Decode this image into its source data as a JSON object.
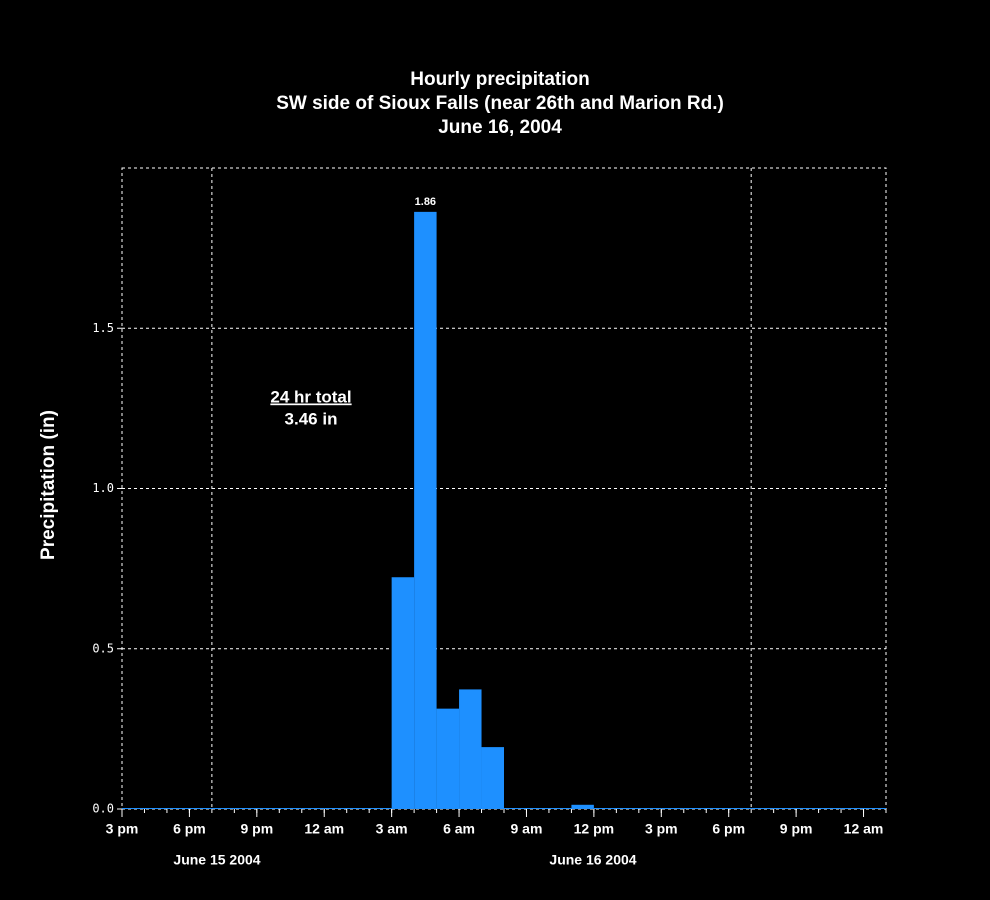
{
  "chart_data": {
    "type": "histogram",
    "title": [
      "Hourly precipitation",
      "SW side of Sioux Falls (near 26th and Marion Rd.)",
      "June 16, 2004"
    ],
    "y_label": "Precipitation (in)",
    "bins": [
      0,
      1,
      2,
      3,
      4,
      5,
      6,
      7,
      8,
      9,
      10,
      11,
      12,
      13,
      14,
      15,
      16,
      17,
      18,
      19,
      20,
      21,
      22,
      23,
      24,
      25,
      26,
      27,
      28,
      29,
      30,
      31,
      32,
      33,
      34
    ],
    "values": [
      0,
      0,
      0,
      0,
      0,
      0,
      0,
      0,
      0,
      0,
      0,
      0,
      0.72,
      1.86,
      0.31,
      0.37,
      0.19,
      0,
      0,
      0,
      0.01,
      0,
      0,
      0,
      0,
      0,
      0,
      0,
      0,
      0,
      0,
      0,
      0,
      0
    ],
    "color": "#1e90ff",
    "xlim": [
      0,
      34
    ],
    "ylim": [
      0,
      2.0
    ],
    "xticks": [
      {
        "value": 0,
        "label": "3 pm"
      },
      {
        "value": 3,
        "label": "6 pm"
      },
      {
        "value": 6,
        "label": "9 pm"
      },
      {
        "value": 9,
        "label": "12 am"
      },
      {
        "value": 12,
        "label": "3 am"
      },
      {
        "value": 15,
        "label": "6 am"
      },
      {
        "value": 18,
        "label": "9 am"
      },
      {
        "value": 21,
        "label": "12 pm"
      },
      {
        "value": 24,
        "label": "3 pm"
      },
      {
        "value": 27,
        "label": "6 pm"
      },
      {
        "value": 30,
        "label": "9 pm"
      },
      {
        "value": 33,
        "label": "12 am"
      }
    ],
    "yticks": [
      {
        "value": 0,
        "label": "0.0"
      },
      0.5,
      {
        "value": 1,
        "label": "1.0"
      },
      1.5
    ],
    "xgrid": [
      4,
      28
    ],
    "grid": true,
    "peak_label": {
      "index": 13,
      "label": "1.86"
    },
    "date_labels": [
      "June 15 2004",
      "June 16 2004"
    ],
    "annotation": {
      "heading": "24 hr total",
      "total": "3.46 in"
    }
  }
}
